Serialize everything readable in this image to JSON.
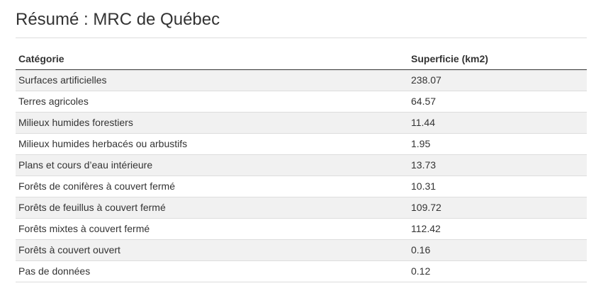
{
  "summary": {
    "title": "Résumé : MRC de Québec",
    "columns": {
      "category": "Catégorie",
      "area": "Superficie (km2)"
    },
    "rows": [
      {
        "category": "Surfaces artificielles",
        "area": "238.07"
      },
      {
        "category": "Terres agricoles",
        "area": "64.57"
      },
      {
        "category": "Milieux humides forestiers",
        "area": "11.44"
      },
      {
        "category": "Milieux humides herbacés ou arbustifs",
        "area": "1.95"
      },
      {
        "category": "Plans et cours d’eau intérieure",
        "area": "13.73"
      },
      {
        "category": "Forêts de conifères à couvert fermé",
        "area": "10.31"
      },
      {
        "category": "Forêts de feuillus à couvert fermé",
        "area": "109.72"
      },
      {
        "category": "Forêts mixtes à couvert fermé",
        "area": "112.42"
      },
      {
        "category": "Forêts à couvert ouvert",
        "area": "0.16"
      },
      {
        "category": "Pas de données",
        "area": "0.12"
      }
    ]
  }
}
